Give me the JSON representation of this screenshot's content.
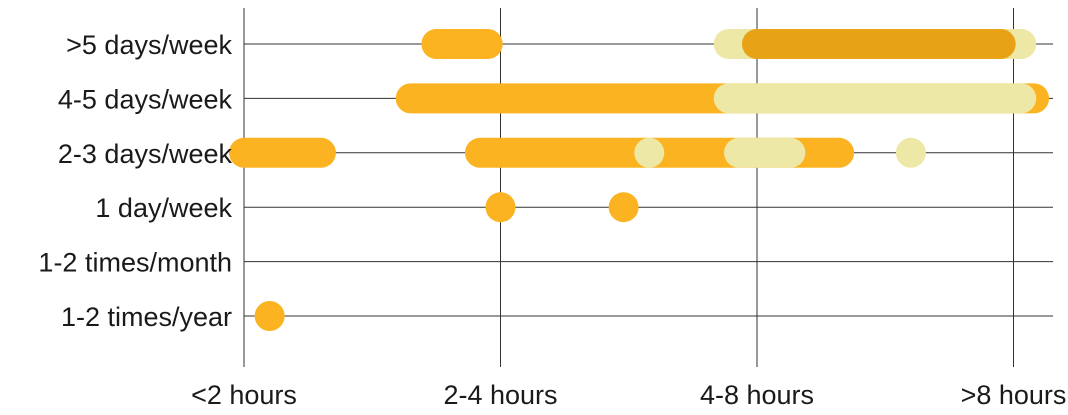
{
  "chart_data": {
    "type": "range-bar",
    "title": "",
    "xlabel": "",
    "ylabel": "",
    "x_categories": [
      "<2 hours",
      "2-4 hours",
      "4-8 hours",
      ">8 hours"
    ],
    "y_categories": [
      ">5 days/week",
      "4-5 days/week",
      "2-3 days/week",
      "1 day/week",
      "1-2 times/month",
      "1-2 times/year"
    ],
    "grid": true,
    "legend": "none",
    "series": [
      {
        "color": "#FBB321",
        "ranges": [
          {
            "y": ">5 days/week",
            "from": 0.75,
            "to": 0.95
          },
          {
            "y": "4-5 days/week",
            "from": 0.65,
            "to": 3.08
          },
          {
            "y": "2-3 days/week",
            "from": 0.0,
            "to": 0.3
          },
          {
            "y": "2-3 days/week",
            "from": 0.92,
            "to": 2.32
          },
          {
            "y": "1 day/week",
            "from": 1.0,
            "to": 1.0
          },
          {
            "y": "1 day/week",
            "from": 1.48,
            "to": 1.48
          },
          {
            "y": "1-2 times/year",
            "from": 0.1,
            "to": 0.1
          }
        ]
      },
      {
        "color": "#EEE8A6",
        "ranges": [
          {
            "y": ">5 days/week",
            "from": 1.89,
            "to": 3.03
          },
          {
            "y": "4-5 days/week",
            "from": 1.89,
            "to": 3.03
          },
          {
            "y": "2-3 days/week",
            "from": 1.58,
            "to": 1.58
          },
          {
            "y": "2-3 days/week",
            "from": 1.93,
            "to": 2.13
          },
          {
            "y": "2-3 days/week",
            "from": 2.6,
            "to": 2.6
          }
        ]
      },
      {
        "color": "#E8A216",
        "ranges": [
          {
            "y": ">5 days/week",
            "from": 2.0,
            "to": 2.95
          }
        ]
      }
    ]
  }
}
